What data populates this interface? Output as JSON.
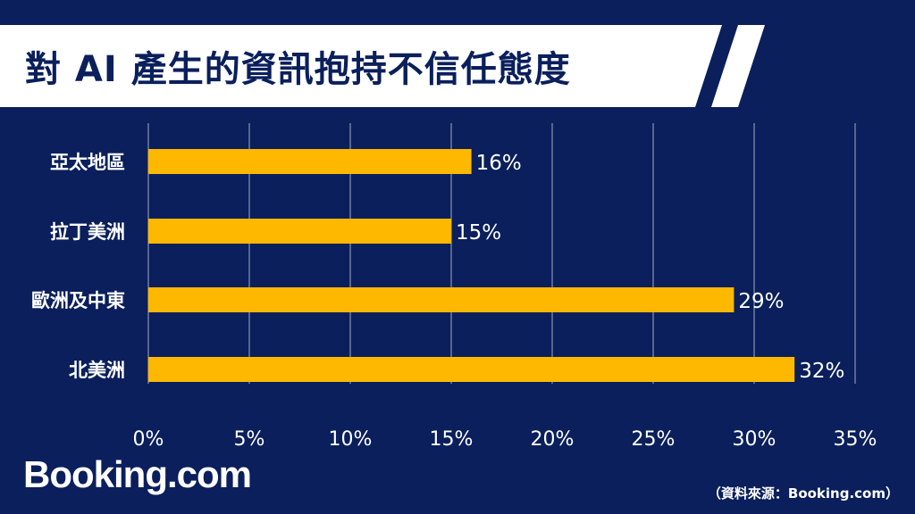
{
  "title": "對 AI 產生的資訊抱持不信任態度",
  "logo": "Booking.com",
  "source": "（資料來源：Booking.com）",
  "colors": {
    "background": "#0a1f5c",
    "bar": "#ffb800",
    "banner": "#ffffff",
    "grid": "#c9cfe0",
    "text": "#ffffff"
  },
  "chart_data": {
    "type": "bar",
    "orientation": "horizontal",
    "categories": [
      "亞太地區",
      "拉丁美洲",
      "歐洲及中東",
      "北美洲"
    ],
    "values": [
      16,
      15,
      29,
      32
    ],
    "value_labels": [
      "16%",
      "15%",
      "29%",
      "32%"
    ],
    "xlim": [
      0,
      35
    ],
    "x_ticks": [
      0,
      5,
      10,
      15,
      20,
      25,
      30,
      35
    ],
    "x_tick_labels": [
      "0%",
      "5%",
      "10%",
      "15%",
      "20%",
      "25%",
      "30%",
      "35%"
    ],
    "grid": "vertical",
    "legend": "none"
  }
}
